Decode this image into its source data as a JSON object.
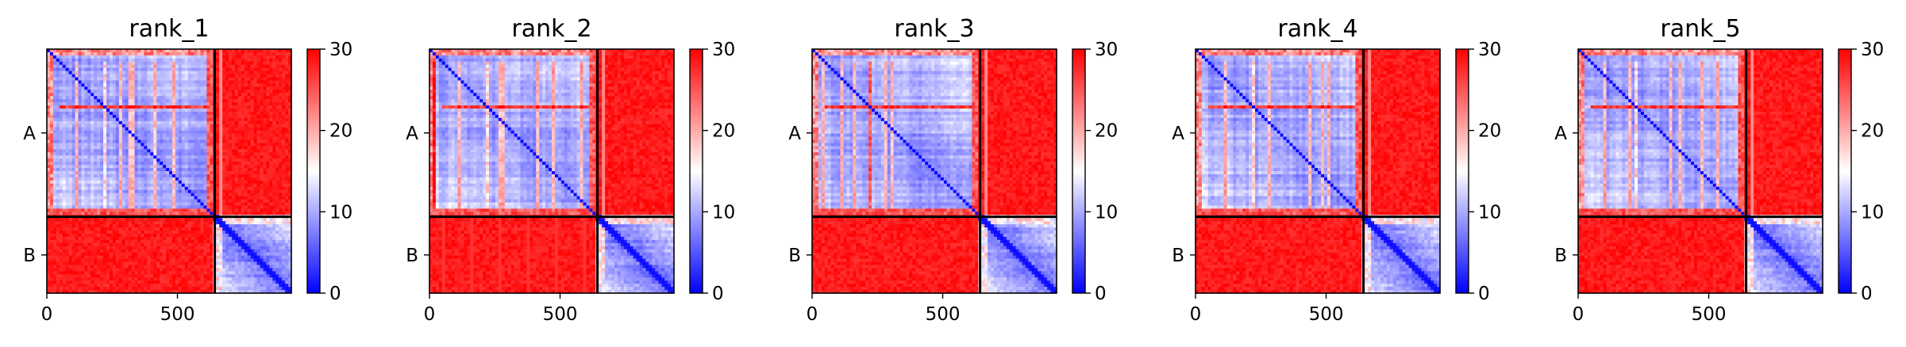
{
  "chart_data": {
    "type": "heatmap",
    "panels": [
      {
        "title": "rank_1",
        "variant": "r1"
      },
      {
        "title": "rank_2",
        "variant": "r2"
      },
      {
        "title": "rank_3",
        "variant": "r3"
      },
      {
        "title": "rank_4",
        "variant": "r4"
      },
      {
        "title": "rank_5",
        "variant": "r5"
      }
    ],
    "x_range": [
      0,
      936
    ],
    "y_range": [
      0,
      936
    ],
    "x_ticks": [
      0,
      500
    ],
    "x_tick_labels": [
      "0",
      "500"
    ],
    "chain_boundary": 643,
    "chains": [
      {
        "label": "A",
        "center": 321.5
      },
      {
        "label": "B",
        "center": 789.5
      }
    ],
    "colorbar": {
      "range": [
        0,
        30
      ],
      "ticks": [
        0,
        10,
        20,
        30
      ],
      "tick_labels": [
        "0",
        "10",
        "20",
        "30"
      ],
      "colormap": "bwr",
      "low_color": "#0000ff",
      "mid_color": "#ffffff",
      "high_color": "#ff0000"
    }
  }
}
